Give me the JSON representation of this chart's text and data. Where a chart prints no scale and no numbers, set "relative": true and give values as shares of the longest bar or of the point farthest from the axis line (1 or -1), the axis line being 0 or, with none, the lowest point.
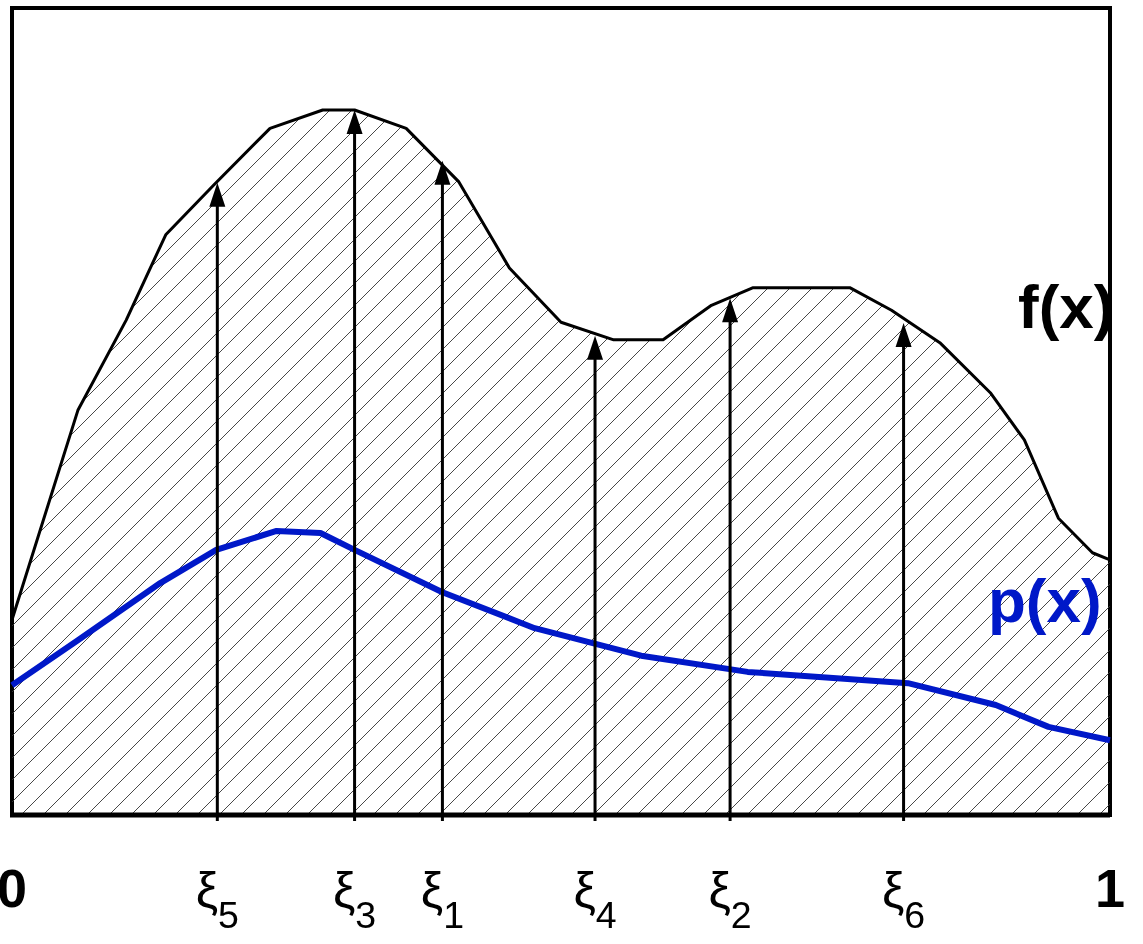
{
  "chart_data": {
    "type": "area",
    "relative": true,
    "xlim": [
      0,
      1
    ],
    "xticks": [
      0,
      1
    ],
    "tick_labels": "x",
    "legend": false,
    "marker": "none",
    "annotations": [
      {
        "text": "ξ$_{5}$",
        "x": 0.187,
        "y": 0
      },
      {
        "text": "ξ$_{3}$",
        "x": 0.312,
        "y": 0
      },
      {
        "text": "ξ$_{1}$",
        "x": 0.392,
        "y": 0
      },
      {
        "text": "ξ$_{4}$",
        "x": 0.531,
        "y": 0
      },
      {
        "text": "ξ$_{2}$",
        "x": 0.654,
        "y": 0
      },
      {
        "text": "ξ$_{6}$",
        "x": 0.812,
        "y": 0
      }
    ],
    "series": [
      {
        "name": "f(x)",
        "color": "#000000",
        "x": [
          0,
          0.06,
          0.104,
          0.14,
          0.184,
          0.235,
          0.283,
          0.312,
          0.359,
          0.407,
          0.453,
          0.5,
          0.548,
          0.593,
          0.637,
          0.675,
          0.763,
          0.801,
          0.845,
          0.891,
          0.922,
          0.953,
          0.984,
          1
        ],
        "values": [
          0.277,
          0.574,
          0.702,
          0.823,
          0.894,
          0.974,
          1,
          1,
          0.974,
          0.898,
          0.776,
          0.699,
          0.674,
          0.674,
          0.723,
          0.748,
          0.748,
          0.716,
          0.67,
          0.599,
          0.532,
          0.421,
          0.372,
          0.362
        ]
      },
      {
        "name": "p(x)",
        "type": "line",
        "color": "#0018c8",
        "x": [
          0,
          0.06,
          0.135,
          0.186,
          0.241,
          0.281,
          0.312,
          0.392,
          0.476,
          0.573,
          0.67,
          0.816,
          0.896,
          0.944,
          1
        ],
        "values": [
          0.184,
          0.248,
          0.329,
          0.376,
          0.403,
          0.4,
          0.376,
          0.316,
          0.265,
          0.226,
          0.203,
          0.187,
          0.156,
          0.125,
          0.106
        ]
      },
      {
        "type": "lollipop",
        "marker": "triangle",
        "color": "#000000",
        "x": [
          0.187,
          0.312,
          0.392,
          0.531,
          0.654,
          0.812
        ],
        "values": [
          0.877,
          0.98,
          0.908,
          0.66,
          0.713,
          0.678
        ]
      }
    ]
  }
}
